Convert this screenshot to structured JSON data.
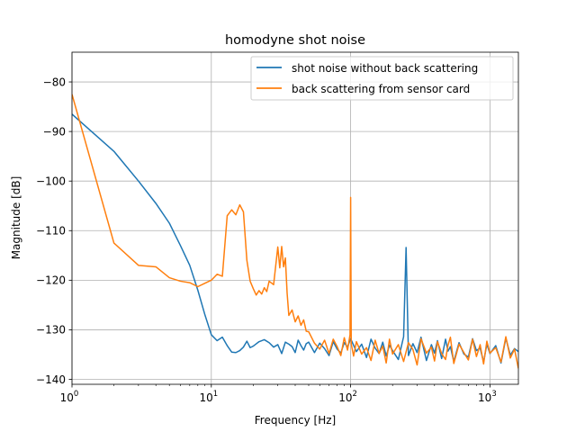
{
  "chart_data": {
    "type": "line",
    "title": "homodyne shot noise",
    "xlabel": "Frequency [Hz]",
    "ylabel": "Magnitude [dB]",
    "xscale": "log",
    "xlim": [
      1,
      1600
    ],
    "ylim": [
      -141,
      -74
    ],
    "grid": true,
    "legend_position": "top-right",
    "x_ticks": [
      {
        "value": 1,
        "base": "10",
        "exp": "0"
      },
      {
        "value": 10,
        "base": "10",
        "exp": "1"
      },
      {
        "value": 100,
        "base": "10",
        "exp": "2"
      },
      {
        "value": 1000,
        "base": "10",
        "exp": "3"
      }
    ],
    "y_ticks": [
      {
        "value": -80,
        "label": "−80"
      },
      {
        "value": -90,
        "label": "−90"
      },
      {
        "value": -100,
        "label": "−100"
      },
      {
        "value": -110,
        "label": "−110"
      },
      {
        "value": -120,
        "label": "−120"
      },
      {
        "value": -130,
        "label": "−130"
      },
      {
        "value": -140,
        "label": "−140"
      }
    ],
    "series": [
      {
        "name": "shot noise without back scattering",
        "color": "#1f77b4",
        "x": [
          1,
          2,
          3,
          4,
          5,
          6,
          7,
          8,
          9,
          10,
          11,
          12,
          13,
          14,
          15,
          16,
          17,
          18,
          19,
          20,
          22,
          24,
          26,
          28,
          30,
          32,
          34,
          36,
          38,
          40,
          42,
          44,
          46,
          48,
          50,
          55,
          60,
          65,
          70,
          75,
          80,
          85,
          90,
          95,
          100,
          110,
          120,
          130,
          140,
          150,
          160,
          170,
          180,
          190,
          200,
          220,
          240,
          250,
          260,
          280,
          300,
          320,
          350,
          380,
          400,
          420,
          450,
          480,
          500,
          520,
          550,
          600,
          650,
          700,
          750,
          800,
          850,
          900,
          950,
          1000,
          1100,
          1200,
          1300,
          1400,
          1500,
          1600
        ],
        "y": [
          -86.5,
          -94,
          -100,
          -104.5,
          -108.5,
          -113,
          -117,
          -122,
          -127,
          -131,
          -132.2,
          -131.5,
          -133.2,
          -134.5,
          -134.6,
          -134.2,
          -133.5,
          -132.3,
          -133.6,
          -133.3,
          -132.4,
          -132.0,
          -132.6,
          -133.5,
          -133.0,
          -134.8,
          -132.5,
          -132.9,
          -133.4,
          -134.6,
          -132.1,
          -133.2,
          -134.1,
          -132.8,
          -132.5,
          -134.6,
          -132.7,
          -133.8,
          -135.2,
          -132.4,
          -133.9,
          -134.7,
          -132.6,
          -133.5,
          -131.8,
          -134.4,
          -132.9,
          -135.6,
          -131.9,
          -133.7,
          -134.8,
          -132.5,
          -135.3,
          -133.1,
          -134.2,
          -136.0,
          -131.4,
          -113.4,
          -135.2,
          -132.8,
          -134.6,
          -131.5,
          -136.2,
          -133.0,
          -134.7,
          -132.2,
          -135.8,
          -131.9,
          -134.3,
          -133.4,
          -136.4,
          -132.6,
          -134.9,
          -135.5,
          -131.8,
          -134.2,
          -133.7,
          -136.5,
          -132.9,
          -134.8,
          -133.2,
          -136.7,
          -131.7,
          -135.1,
          -133.8,
          -134.4
        ]
      },
      {
        "name": "back scattering from sensor card",
        "color": "#ff7f0e",
        "x": [
          1,
          2,
          3,
          4,
          5,
          6,
          7,
          8,
          9,
          10,
          11,
          12,
          13,
          14,
          15,
          16,
          17,
          18,
          19,
          20,
          21,
          22,
          23,
          24,
          25,
          26,
          28,
          30,
          31,
          32,
          33,
          34,
          35,
          36,
          38,
          40,
          42,
          44,
          46,
          48,
          50,
          55,
          60,
          65,
          70,
          75,
          80,
          85,
          90,
          95,
          99,
          100,
          101,
          105,
          110,
          120,
          130,
          140,
          150,
          160,
          170,
          180,
          190,
          200,
          220,
          240,
          260,
          280,
          300,
          320,
          350,
          380,
          400,
          420,
          450,
          480,
          500,
          520,
          550,
          600,
          650,
          700,
          750,
          800,
          850,
          900,
          950,
          1000,
          1100,
          1200,
          1300,
          1400,
          1500,
          1600
        ],
        "y": [
          -82.5,
          -112.5,
          -117.0,
          -117.3,
          -119.5,
          -120.2,
          -120.5,
          -121.3,
          -120.6,
          -120.0,
          -118.8,
          -119.2,
          -107.0,
          -105.8,
          -106.8,
          -104.8,
          -106.2,
          -116.0,
          -120.2,
          -121.7,
          -123.0,
          -122.1,
          -122.8,
          -121.5,
          -122.3,
          -120.2,
          -120.9,
          -113.3,
          -117.5,
          -113.2,
          -117.3,
          -115.5,
          -122.6,
          -127.1,
          -126.0,
          -128.4,
          -127.2,
          -129.1,
          -128.0,
          -130.3,
          -130.4,
          -132.7,
          -133.9,
          -132.1,
          -134.8,
          -131.9,
          -133.4,
          -135.2,
          -131.6,
          -134.1,
          -131.0,
          -103.3,
          -132.9,
          -135.3,
          -132.4,
          -134.9,
          -133.6,
          -136.2,
          -132.1,
          -134.8,
          -133.3,
          -136.7,
          -131.9,
          -134.9,
          -133.0,
          -136.4,
          -132.6,
          -134.0,
          -137.1,
          -131.8,
          -134.7,
          -133.5,
          -136.3,
          -132.4,
          -134.8,
          -136.0,
          -133.1,
          -131.5,
          -136.8,
          -132.9,
          -134.6,
          -136.1,
          -131.9,
          -135.4,
          -133.0,
          -136.9,
          -132.3,
          -134.7,
          -133.6,
          -136.5,
          -131.4,
          -135.7,
          -133.9,
          -137.8
        ]
      }
    ]
  }
}
